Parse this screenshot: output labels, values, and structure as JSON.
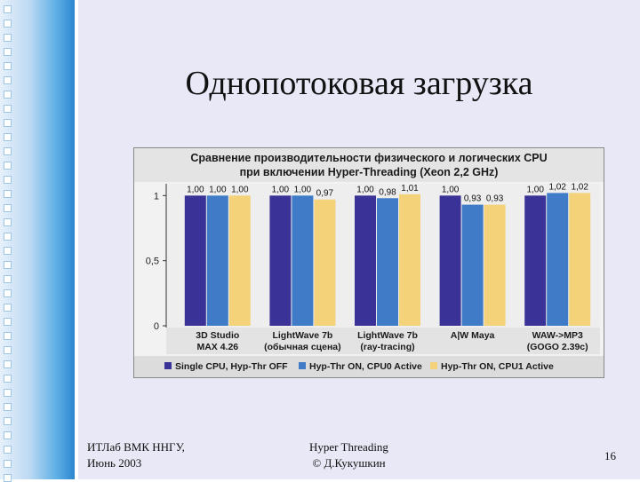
{
  "slide": {
    "title": "Однопотоковая загрузка",
    "footer_left_line1": "ИТЛаб ВМК ННГУ,",
    "footer_left_line2": "Июнь 2003",
    "footer_mid_line1": "Hyper Threading",
    "footer_mid_line2": "© Д.Кукушкин",
    "page_number": "16"
  },
  "chart_data": {
    "type": "bar",
    "title": "Сравнение производительности физического и логических CPU при включении Hyper-Threading (Xeon 2,2 GHz)",
    "title_line1": "Сравнение производительности физического и логических CPU",
    "title_line2": "при включении Hyper-Threading (Xeon 2,2 GHz)",
    "ylim": [
      0,
      1.05
    ],
    "yticks": [
      "1",
      "0,5",
      "0"
    ],
    "ytick_values": [
      1,
      0.5,
      0
    ],
    "categories": [
      [
        "3D Studio",
        "MAX 4.26"
      ],
      [
        "LightWave 7b",
        "(обычная сцена)"
      ],
      [
        "LightWave 7b",
        "(ray-tracing)"
      ],
      [
        "A|W Maya"
      ],
      [
        "WAW->MP3",
        "(GOGO 2.39c)"
      ]
    ],
    "series": [
      {
        "name": "Single CPU, Hyp-Thr OFF",
        "color": "#3a3296",
        "values": [
          1.0,
          1.0,
          1.0,
          1.0,
          1.0
        ],
        "labels": [
          "1,00",
          "1,00",
          "1,00",
          "1,00",
          "1,00"
        ]
      },
      {
        "name": "Hyp-Thr ON, CPU0 Active",
        "color": "#3f7bc6",
        "values": [
          1.0,
          1.0,
          0.98,
          0.93,
          1.02
        ],
        "labels": [
          "1,00",
          "1,00",
          "0,98",
          "0,93",
          "1,02"
        ]
      },
      {
        "name": "Hyp-Thr ON, CPU1 Active",
        "color": "#f3d27a",
        "values": [
          1.0,
          0.97,
          1.01,
          0.93,
          1.02
        ],
        "labels": [
          "1,00",
          "0,97",
          "1,01",
          "0,93",
          "1,02"
        ]
      }
    ],
    "grid": true,
    "legend_position": "bottom"
  }
}
